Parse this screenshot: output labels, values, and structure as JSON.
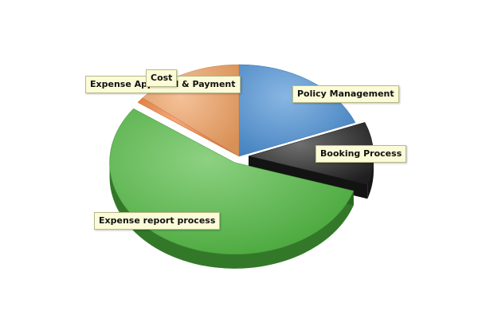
{
  "chart_data": {
    "type": "pie",
    "categories": [
      "Policy Management",
      "Booking Process",
      "Expense report process",
      "Expense Approval & Payment",
      "Cost"
    ],
    "values": [
      19,
      11,
      55,
      1,
      14
    ],
    "colors": [
      "#4a8fd4",
      "#222222",
      "#4fb83f",
      "#f07a30",
      "#f0a060"
    ],
    "title": "",
    "legend": "none",
    "exploded": [
      "Booking Process",
      "Expense report process"
    ]
  }
}
